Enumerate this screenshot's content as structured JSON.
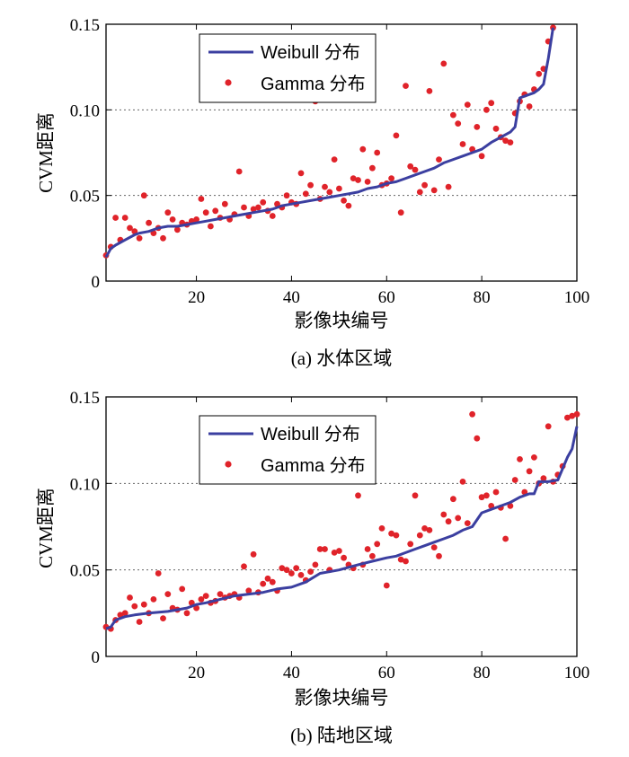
{
  "chart_data": [
    {
      "type": "line+scatter",
      "panel_id": "a",
      "caption": "(a) 水体区域",
      "xlabel": "影像块编号",
      "ylabel": "CVM距离",
      "xlim": [
        1,
        100
      ],
      "ylim": [
        0,
        0.15
      ],
      "xticks": [
        20,
        40,
        60,
        80,
        100
      ],
      "xtick_labels": [
        "20",
        "40",
        "60",
        "80",
        "100"
      ],
      "yticks": [
        0,
        0.05,
        0.1,
        0.15
      ],
      "ytick_labels": [
        "0",
        "0.05",
        "0.10",
        "0.15"
      ],
      "grid": "horizontal dotted at 0.05 and 0.10",
      "legend_position": "top-left",
      "series": [
        {
          "name": "Weibull 分布",
          "kind": "line",
          "color": "#3b3fa0",
          "x": [
            1,
            2,
            3,
            5,
            7,
            8,
            10,
            12,
            14,
            16,
            18,
            20,
            22,
            24,
            26,
            28,
            30,
            32,
            34,
            36,
            38,
            40,
            42,
            44,
            46,
            48,
            50,
            52,
            54,
            56,
            58,
            60,
            62,
            64,
            66,
            68,
            70,
            72,
            74,
            76,
            78,
            80,
            82,
            84,
            86,
            87,
            88,
            90,
            91,
            92,
            93,
            94,
            95
          ],
          "y": [
            0.014,
            0.019,
            0.021,
            0.024,
            0.027,
            0.028,
            0.029,
            0.031,
            0.032,
            0.032,
            0.033,
            0.034,
            0.035,
            0.036,
            0.037,
            0.038,
            0.039,
            0.04,
            0.041,
            0.042,
            0.044,
            0.045,
            0.046,
            0.047,
            0.048,
            0.049,
            0.05,
            0.051,
            0.052,
            0.054,
            0.055,
            0.057,
            0.058,
            0.06,
            0.062,
            0.064,
            0.066,
            0.069,
            0.071,
            0.073,
            0.075,
            0.077,
            0.081,
            0.084,
            0.087,
            0.09,
            0.107,
            0.109,
            0.11,
            0.112,
            0.115,
            0.13,
            0.148
          ]
        },
        {
          "name": "Gamma 分布",
          "kind": "scatter",
          "color": "#e0232a",
          "x": [
            1,
            2,
            3,
            4,
            5,
            6,
            7,
            8,
            9,
            10,
            11,
            12,
            13,
            14,
            15,
            16,
            17,
            18,
            19,
            20,
            21,
            22,
            23,
            24,
            25,
            26,
            27,
            28,
            29,
            30,
            31,
            32,
            33,
            34,
            35,
            36,
            37,
            38,
            39,
            40,
            41,
            42,
            43,
            44,
            45,
            46,
            47,
            48,
            49,
            50,
            51,
            52,
            53,
            54,
            55,
            56,
            57,
            58,
            59,
            60,
            61,
            62,
            63,
            64,
            65,
            66,
            67,
            68,
            69,
            70,
            71,
            72,
            73,
            74,
            75,
            76,
            77,
            78,
            79,
            80,
            81,
            82,
            83,
            84,
            85,
            86,
            87,
            88,
            89,
            90,
            91,
            92,
            93,
            94,
            95
          ],
          "y": [
            0.015,
            0.02,
            0.037,
            0.024,
            0.037,
            0.031,
            0.029,
            0.025,
            0.05,
            0.034,
            0.028,
            0.031,
            0.025,
            0.04,
            0.036,
            0.03,
            0.034,
            0.033,
            0.035,
            0.036,
            0.048,
            0.04,
            0.032,
            0.041,
            0.037,
            0.045,
            0.036,
            0.039,
            0.064,
            0.043,
            0.038,
            0.042,
            0.043,
            0.046,
            0.041,
            0.038,
            0.045,
            0.043,
            0.05,
            0.046,
            0.045,
            0.063,
            0.051,
            0.056,
            0.105,
            0.048,
            0.055,
            0.052,
            0.071,
            0.054,
            0.047,
            0.044,
            0.06,
            0.059,
            0.077,
            0.058,
            0.066,
            0.075,
            0.056,
            0.057,
            0.06,
            0.085,
            0.04,
            0.114,
            0.067,
            0.065,
            0.052,
            0.056,
            0.111,
            0.053,
            0.071,
            0.127,
            0.055,
            0.097,
            0.092,
            0.08,
            0.103,
            0.077,
            0.09,
            0.073,
            0.1,
            0.104,
            0.089,
            0.084,
            0.082,
            0.081,
            0.098,
            0.105,
            0.109,
            0.102,
            0.112,
            0.121,
            0.124,
            0.14,
            0.148
          ]
        }
      ]
    },
    {
      "type": "line+scatter",
      "panel_id": "b",
      "caption": "(b) 陆地区域",
      "xlabel": "影像块编号",
      "ylabel": "CVM距离",
      "xlim": [
        1,
        100
      ],
      "ylim": [
        0,
        0.15
      ],
      "xticks": [
        20,
        40,
        60,
        80,
        100
      ],
      "xtick_labels": [
        "20",
        "40",
        "60",
        "80",
        "100"
      ],
      "yticks": [
        0,
        0.05,
        0.1,
        0.15
      ],
      "ytick_labels": [
        "0",
        "0.05",
        "0.10",
        "0.15"
      ],
      "grid": "horizontal dotted at 0.05 and 0.10",
      "legend_position": "top-left",
      "series": [
        {
          "name": "Weibull 分布",
          "kind": "line",
          "color": "#3b3fa0",
          "x": [
            1,
            2,
            3,
            5,
            7,
            10,
            14,
            16,
            18,
            20,
            22,
            25,
            28,
            31,
            34,
            37,
            40,
            43,
            46,
            50,
            54,
            57,
            60,
            62,
            64,
            66,
            68,
            70,
            72,
            74,
            76,
            78,
            80,
            82,
            84,
            86,
            88,
            90,
            91,
            92,
            94,
            96,
            98,
            99,
            100
          ],
          "y": [
            0.016,
            0.017,
            0.021,
            0.023,
            0.024,
            0.025,
            0.026,
            0.027,
            0.028,
            0.03,
            0.031,
            0.033,
            0.035,
            0.036,
            0.037,
            0.039,
            0.04,
            0.043,
            0.048,
            0.05,
            0.053,
            0.055,
            0.057,
            0.058,
            0.06,
            0.062,
            0.064,
            0.066,
            0.068,
            0.07,
            0.073,
            0.075,
            0.083,
            0.085,
            0.087,
            0.089,
            0.092,
            0.094,
            0.094,
            0.101,
            0.101,
            0.102,
            0.115,
            0.12,
            0.133
          ]
        },
        {
          "name": "Gamma 分布",
          "kind": "scatter",
          "color": "#e0232a",
          "x": [
            1,
            2,
            3,
            4,
            5,
            6,
            7,
            8,
            9,
            10,
            11,
            12,
            13,
            14,
            15,
            16,
            17,
            18,
            19,
            20,
            21,
            22,
            23,
            24,
            25,
            26,
            27,
            28,
            29,
            30,
            31,
            32,
            33,
            34,
            35,
            36,
            37,
            38,
            39,
            40,
            41,
            42,
            43,
            44,
            45,
            46,
            47,
            48,
            49,
            50,
            51,
            52,
            53,
            54,
            55,
            56,
            57,
            58,
            59,
            60,
            61,
            62,
            63,
            64,
            65,
            66,
            67,
            68,
            69,
            70,
            71,
            72,
            73,
            74,
            75,
            76,
            77,
            78,
            79,
            80,
            81,
            82,
            83,
            84,
            85,
            86,
            87,
            88,
            89,
            90,
            91,
            92,
            93,
            94,
            95,
            96,
            97,
            98,
            99,
            100
          ],
          "y": [
            0.017,
            0.016,
            0.021,
            0.024,
            0.025,
            0.034,
            0.029,
            0.02,
            0.03,
            0.025,
            0.033,
            0.048,
            0.022,
            0.036,
            0.028,
            0.027,
            0.039,
            0.025,
            0.031,
            0.028,
            0.033,
            0.035,
            0.031,
            0.032,
            0.036,
            0.034,
            0.035,
            0.036,
            0.034,
            0.052,
            0.038,
            0.059,
            0.037,
            0.042,
            0.045,
            0.043,
            0.038,
            0.051,
            0.05,
            0.048,
            0.051,
            0.047,
            0.044,
            0.049,
            0.053,
            0.062,
            0.062,
            0.05,
            0.06,
            0.061,
            0.057,
            0.053,
            0.051,
            0.093,
            0.053,
            0.062,
            0.058,
            0.065,
            0.074,
            0.041,
            0.071,
            0.07,
            0.056,
            0.055,
            0.065,
            0.093,
            0.07,
            0.074,
            0.073,
            0.063,
            0.058,
            0.082,
            0.078,
            0.091,
            0.08,
            0.101,
            0.077,
            0.14,
            0.126,
            0.092,
            0.093,
            0.087,
            0.095,
            0.086,
            0.068,
            0.087,
            0.102,
            0.114,
            0.095,
            0.107,
            0.115,
            0.1,
            0.103,
            0.133,
            0.101,
            0.105,
            0.11,
            0.138,
            0.139,
            0.14
          ]
        }
      ]
    }
  ]
}
